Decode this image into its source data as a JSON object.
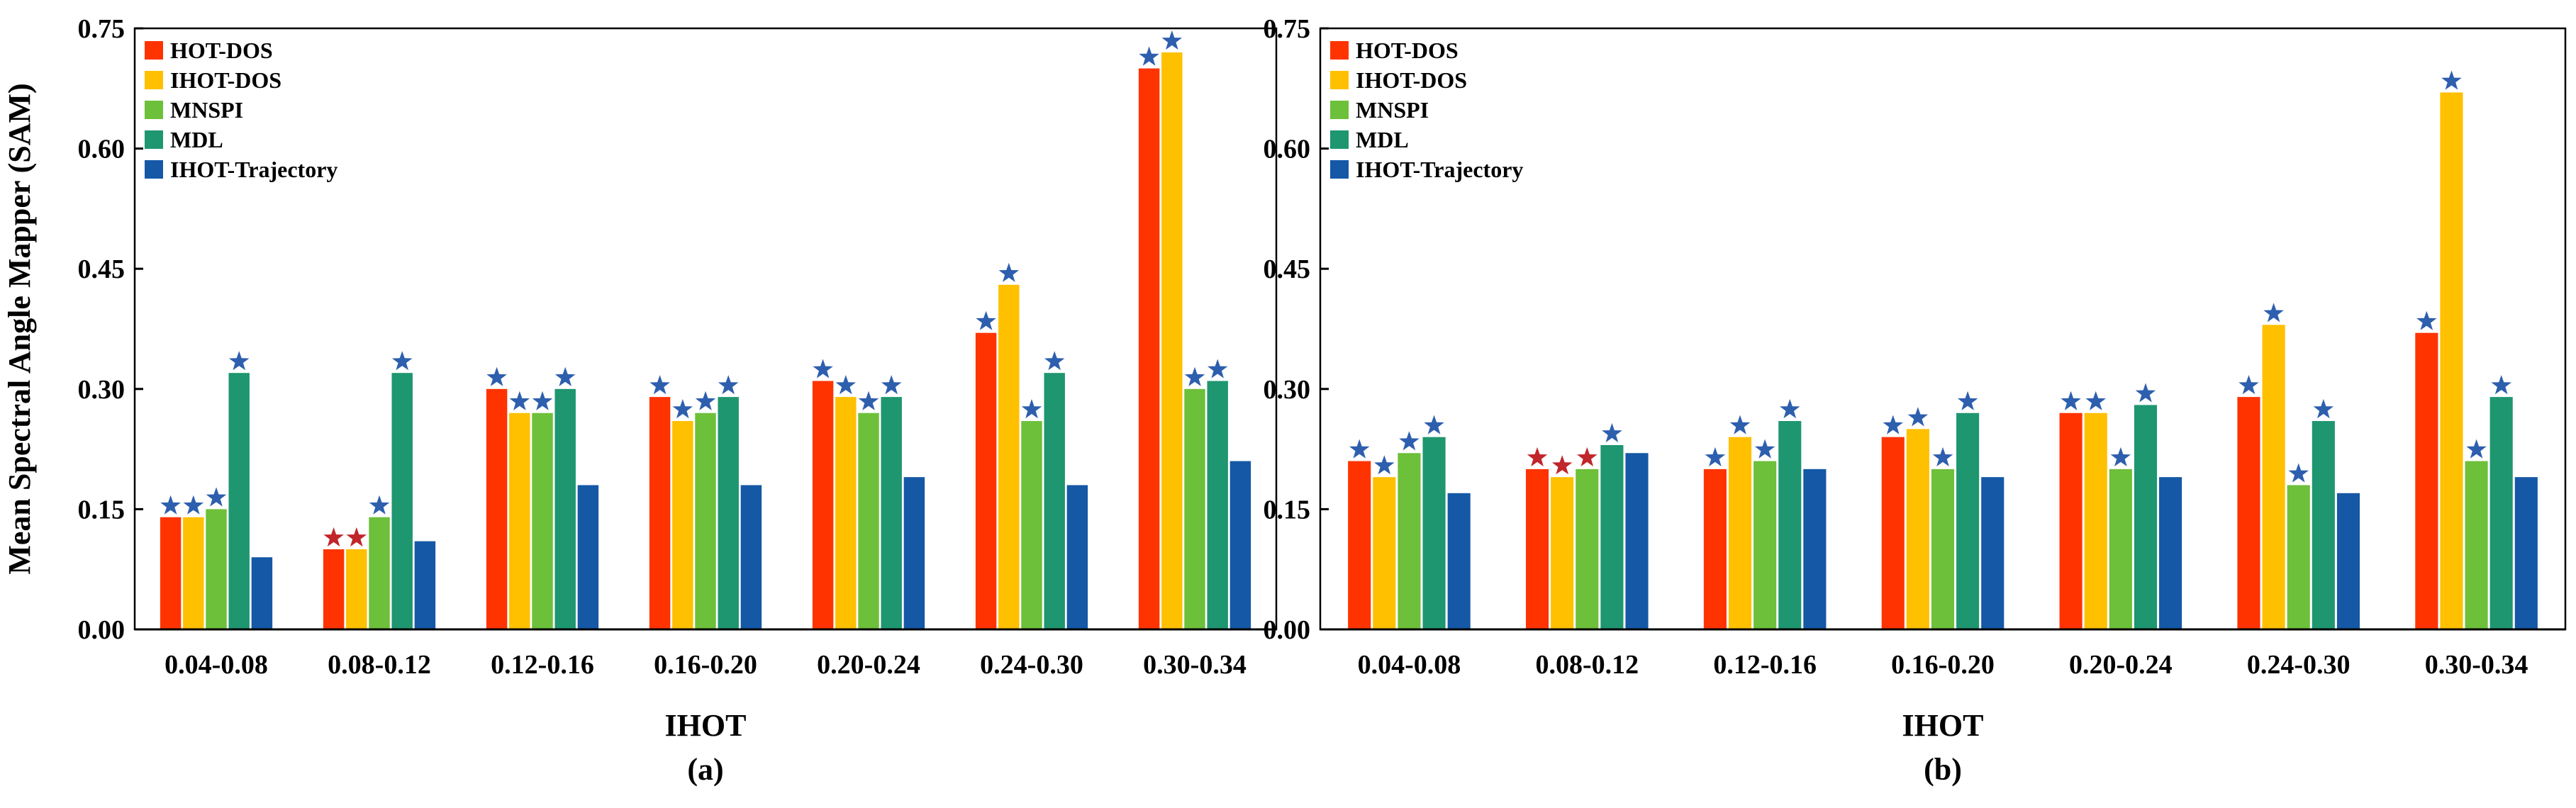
{
  "colors": {
    "HOT-DOS": "#ff3300",
    "IHOT-DOS": "#ffc000",
    "MNSPI": "#6dc03a",
    "MDL": "#1e9670",
    "IHOT-Trajectory": "#1458a6",
    "star_blue": "#2e5fae",
    "star_red": "#c0262a"
  },
  "chart_data": [
    {
      "type": "bar",
      "panel_label": "(a)",
      "title": "",
      "xlabel": "IHOT",
      "ylabel": "Mean Spectral Angle Mapper (SAM)",
      "ylim": [
        0,
        0.75
      ],
      "yticks": [
        "0.00",
        "0.15",
        "0.30",
        "0.45",
        "0.60",
        "0.75"
      ],
      "legend_position": "top-left",
      "categories": [
        "0.04-0.08",
        "0.08-0.12",
        "0.12-0.16",
        "0.16-0.20",
        "0.20-0.24",
        "0.24-0.30",
        "0.30-0.34"
      ],
      "series": [
        {
          "name": "HOT-DOS",
          "values": [
            0.14,
            0.1,
            0.3,
            0.29,
            0.31,
            0.37,
            0.7
          ],
          "stars": [
            "blue",
            "red",
            "blue",
            "blue",
            "blue",
            "blue",
            "blue"
          ]
        },
        {
          "name": "IHOT-DOS",
          "values": [
            0.14,
            0.1,
            0.27,
            0.26,
            0.29,
            0.43,
            0.72
          ],
          "stars": [
            "blue",
            "red",
            "blue",
            "blue",
            "blue",
            "blue",
            "blue"
          ]
        },
        {
          "name": "MNSPI",
          "values": [
            0.15,
            0.14,
            0.27,
            0.27,
            0.27,
            0.26,
            0.3
          ],
          "stars": [
            "blue",
            "blue",
            "blue",
            "blue",
            "blue",
            "blue",
            "blue"
          ]
        },
        {
          "name": "MDL",
          "values": [
            0.32,
            0.32,
            0.3,
            0.29,
            0.29,
            0.32,
            0.31
          ],
          "stars": [
            "blue",
            "blue",
            "blue",
            "blue",
            "blue",
            "blue",
            "blue"
          ]
        },
        {
          "name": "IHOT-Trajectory",
          "values": [
            0.09,
            0.11,
            0.18,
            0.18,
            0.19,
            0.18,
            0.21
          ],
          "stars": [
            null,
            null,
            null,
            null,
            null,
            null,
            null
          ]
        }
      ]
    },
    {
      "type": "bar",
      "panel_label": "(b)",
      "title": "",
      "xlabel": "IHOT",
      "ylabel": "",
      "ylim": [
        0,
        0.75
      ],
      "yticks": [
        "0.00",
        "0.15",
        "0.30",
        "0.45",
        "0.60",
        "0.75"
      ],
      "legend_position": "top-left",
      "categories": [
        "0.04-0.08",
        "0.08-0.12",
        "0.12-0.16",
        "0.16-0.20",
        "0.20-0.24",
        "0.24-0.30",
        "0.30-0.34"
      ],
      "series": [
        {
          "name": "HOT-DOS",
          "values": [
            0.21,
            0.2,
            0.2,
            0.24,
            0.27,
            0.29,
            0.37
          ],
          "stars": [
            "blue",
            "red",
            "blue",
            "blue",
            "blue",
            "blue",
            "blue"
          ]
        },
        {
          "name": "IHOT-DOS",
          "values": [
            0.19,
            0.19,
            0.24,
            0.25,
            0.27,
            0.38,
            0.67
          ],
          "stars": [
            "blue",
            "red",
            "blue",
            "blue",
            "blue",
            "blue",
            "blue"
          ]
        },
        {
          "name": "MNSPI",
          "values": [
            0.22,
            0.2,
            0.21,
            0.2,
            0.2,
            0.18,
            0.21
          ],
          "stars": [
            "blue",
            "red",
            "blue",
            "blue",
            "blue",
            "blue",
            "blue"
          ]
        },
        {
          "name": "MDL",
          "values": [
            0.24,
            0.23,
            0.26,
            0.27,
            0.28,
            0.26,
            0.29
          ],
          "stars": [
            "blue",
            "blue",
            "blue",
            "blue",
            "blue",
            "blue",
            "blue"
          ]
        },
        {
          "name": "IHOT-Trajectory",
          "values": [
            0.17,
            0.22,
            0.2,
            0.19,
            0.19,
            0.17,
            0.19
          ],
          "stars": [
            null,
            null,
            null,
            null,
            null,
            null,
            null
          ]
        }
      ]
    }
  ]
}
